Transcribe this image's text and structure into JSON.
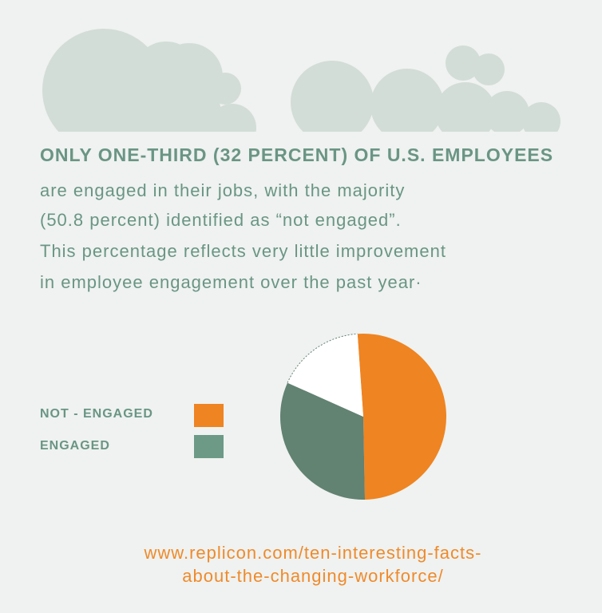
{
  "headline": "ONLY ONE-THIRD (32 PERCENT) OF U.S. EMPLOYEES",
  "body_lines": [
    "are engaged in their jobs, with the majority",
    "(50.8 percent) identified as “not engaged”.",
    "This percentage reflects very little improvement",
    "in employee engagement over the past year·"
  ],
  "colors": {
    "not_engaged": "#ef8422",
    "engaged": "#628272",
    "engaged_swatch": "#6c9a87",
    "remainder": "#ffffff",
    "text": "#6a9585",
    "link": "#ef8a2c",
    "cloud": "#d3ddd7"
  },
  "chart_data": {
    "type": "pie",
    "slices": [
      {
        "label": "NOT - ENGAGED",
        "value": 50.8,
        "color": "#ef8422"
      },
      {
        "label": "ENGAGED",
        "value": 32,
        "color": "#628272"
      },
      {
        "label": "",
        "value": 17.2,
        "color": "#ffffff"
      }
    ],
    "legend": [
      {
        "label": "NOT - ENGAGED",
        "color": "#ef8422"
      },
      {
        "label": "ENGAGED",
        "color": "#6c9a87"
      }
    ],
    "legend_placement": "left"
  },
  "source_url": {
    "line1": "www.replicon.com/ten-interesting-facts-",
    "line2": "about-the-changing-workforce/"
  }
}
